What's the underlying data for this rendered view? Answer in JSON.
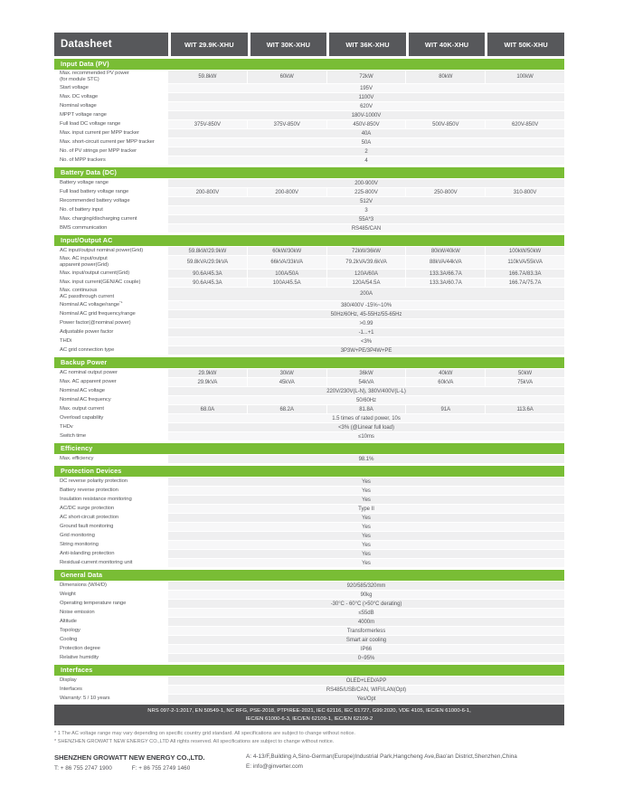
{
  "colors": {
    "brand_green": "#79BD35",
    "header_gray": "#57585B",
    "cert_bar_gray": "#505052",
    "row_gray_a": "#EFEFF0",
    "row_gray_b": "#F7F7F8"
  },
  "header": {
    "title": "Datasheet",
    "columns": [
      "WIT 29.9K-XHU",
      "WIT 30K-XHU",
      "WIT 36K-XHU",
      "WIT 40K-XHU",
      "WIT 50K-XHU"
    ]
  },
  "sections": [
    {
      "title": "Input Data (PV)",
      "rows": [
        {
          "label": "Max. recommended PV power",
          "label2": "(for module STC)",
          "values": [
            "59.8kW",
            "60kW",
            "72kW",
            "80kW",
            "100kW"
          ]
        },
        {
          "label": "Start voltage",
          "value": "195V"
        },
        {
          "label": "Max. DC voltage",
          "value": "1100V"
        },
        {
          "label": "Nominal voltage",
          "value": "620V"
        },
        {
          "label": "MPPT voltage range",
          "value": "180V-1000V"
        },
        {
          "label": "Full load DC voltage range",
          "values": [
            "375V-850V",
            "375V-850V",
            "450V-850V",
            "500V-850V",
            "620V-850V"
          ]
        },
        {
          "label": "Max. input current per MPP tracker",
          "value": "40A"
        },
        {
          "label": "Max. short-circuit current per MPP tracker",
          "value": "50A"
        },
        {
          "label": "No. of PV strings per MPP tracker",
          "value": "2"
        },
        {
          "label": "No. of MPP trackers",
          "value": "4"
        }
      ]
    },
    {
      "title": "Battery Data (DC)",
      "rows": [
        {
          "label": "Battery voltage range",
          "value": "200-900V"
        },
        {
          "label": "Full load battery voltage range",
          "values": [
            "200-800V",
            "200-800V",
            "225-800V",
            "250-800V",
            "310-800V"
          ]
        },
        {
          "label": "Recommended battery voltage",
          "value": "512V"
        },
        {
          "label": "No. of battery input",
          "value": "3"
        },
        {
          "label": "Max. charging/discharging current",
          "value": "55A*3"
        },
        {
          "label": "BMS communication",
          "value": "RS485/CAN"
        }
      ]
    },
    {
      "title": "Input/Output AC",
      "rows": [
        {
          "label": "AC input/output nominal power(Grid)",
          "values": [
            "59.8kW/29.9kW",
            "60kW/30kW",
            "72kW/36kW",
            "80kW/40kW",
            "100kW/50kW"
          ]
        },
        {
          "label": "Max. AC input/output",
          "label2": "apparent power(Grid)",
          "values": [
            "59.8kVA/29.9kVA",
            "66kVA/33kVA",
            "79.2kVA/39.6kVA",
            "88kVA/44kVA",
            "110kVA/55kVA"
          ]
        },
        {
          "label": "Max. input/output current(Grid)",
          "values": [
            "90.6A/45.3A",
            "100A/50A",
            "120A/60A",
            "133.3A/66.7A",
            "166.7A/83.3A"
          ]
        },
        {
          "label": "Max. input current(GEN/AC couple)",
          "values": [
            "90.6A/45.3A",
            "100A/45.5A",
            "120A/54.5A",
            "133.3A/60.7A",
            "166.7A/75.7A"
          ]
        },
        {
          "label": "Max. continuous",
          "label2": "AC passthrough current",
          "value": "200A"
        },
        {
          "label": "Nominal AC voltage/range",
          "sup": "*1",
          "value": "380/400V  -15%~10%"
        },
        {
          "label": "Nominal AC grid frequency/range",
          "value": "50Hz/60Hz, 45-55Hz/55-65Hz"
        },
        {
          "label": "Power factor(@nominal power)",
          "value": ">0.99"
        },
        {
          "label": "Adjustable power factor",
          "value": "-1...+1"
        },
        {
          "label": "THDi",
          "value": "<3%"
        },
        {
          "label": "AC grid connection type",
          "value": "3P3W+PE/3P4W+PE"
        }
      ]
    },
    {
      "title": "Backup Power",
      "rows": [
        {
          "label": "AC nominal output power",
          "values": [
            "29.9kW",
            "30kW",
            "36kW",
            "40kW",
            "50kW"
          ]
        },
        {
          "label": "Max. AC apparent power",
          "values": [
            "29.9kVA",
            "45kVA",
            "54kVA",
            "60kVA",
            "75kVA"
          ]
        },
        {
          "label": "Nominal AC voltage",
          "value": "220V/230V(L-N), 380V/400V(L-L)"
        },
        {
          "label": "Nominal AC frequency",
          "value": "50/60Hz"
        },
        {
          "label": "Max. output current",
          "values": [
            "68.0A",
            "68.2A",
            "81.8A",
            "91A",
            "113.6A"
          ]
        },
        {
          "label": "Overload capability",
          "value": "1.5 times of rated power, 10s"
        },
        {
          "label": "THDv",
          "value": "<3% (@Linear full load)"
        },
        {
          "label": "Switch time",
          "value": "≤10ms"
        }
      ]
    },
    {
      "title": "Efficiency",
      "rows": [
        {
          "label": "Max. efficiency",
          "value": "98.1%"
        }
      ]
    },
    {
      "title": "Protection Devices",
      "rows": [
        {
          "label": "DC reverse polarity protection",
          "value": "Yes"
        },
        {
          "label": "Battery reverse protection",
          "value": "Yes"
        },
        {
          "label": "Insulation resistance monitoring",
          "value": "Yes"
        },
        {
          "label": "AC/DC surge protection",
          "value": "Type II"
        },
        {
          "label": "AC short-circuit protection",
          "value": "Yes"
        },
        {
          "label": "Ground fault monitoring",
          "value": "Yes"
        },
        {
          "label": "Grid monitoring",
          "value": "Yes"
        },
        {
          "label": "String monitoring",
          "value": "Yes"
        },
        {
          "label": "Anti-islanding protection",
          "value": "Yes"
        },
        {
          "label": "Residual-current monitoring unit",
          "value": "Yes"
        }
      ]
    },
    {
      "title": "General Data",
      "rows": [
        {
          "label": "Dimensions (W/H/D)",
          "value": "920/585/320mm"
        },
        {
          "label": "Weight",
          "value": "90kg"
        },
        {
          "label": "Operating temperature range",
          "value": "-30°C - 60°C (>50°C derating)"
        },
        {
          "label": "Noise emission",
          "value": "≤55dB"
        },
        {
          "label": "Altitude",
          "value": "4000m"
        },
        {
          "label": "Topology",
          "value": "Transformerless"
        },
        {
          "label": "Cooling",
          "value": "Smart air cooling"
        },
        {
          "label": "Protection degree",
          "value": "IP66"
        },
        {
          "label": "Relative humidity",
          "value": "0~95%"
        }
      ]
    },
    {
      "title": "Interfaces",
      "rows": [
        {
          "label": "Display",
          "value": "OLED+LED/APP"
        },
        {
          "label": "Interfaces",
          "value": "RS485/USB/CAN, WIFI/LAN(Opt)"
        },
        {
          "label": "Warranty: 5 / 10 years",
          "value": "Yes/Opt"
        }
      ]
    }
  ],
  "certifications": {
    "line1": "NRS 097-2-1:2017, EN 50549-1, NC RFG, PSE-2018, PTPIREE-2021, IEC 62116, IEC 61727, G99:2020, VDE 4105, IEC/EN 61000-6-1,",
    "line2": "IEC/EN 61000-6-3, IEC/EN 62109-1, IEC/EN 62109-2"
  },
  "footnotes": [
    "* 1 The AC voltage range may vary depending on specific country grid standard. All specifications are subject to change without notice.",
    "* SHENZHEN GROWATT NEW ENERGY CO.,LTD All rights reserved. All specifications are subject to change without notice."
  ],
  "footer": {
    "company": "SHENZHEN GROWATT NEW ENERGY CO.,LTD.",
    "tel": "T:  + 86 755 2747 1900",
    "fax": "F:  + 86 755 2749 1460",
    "address": "A:  4-13/F,Building A,Sino-German(Europe)Industrial Park,Hangcheng Ave,Bao'an District,Shenzhen,China",
    "email": "E:  info@ginverter.com"
  }
}
